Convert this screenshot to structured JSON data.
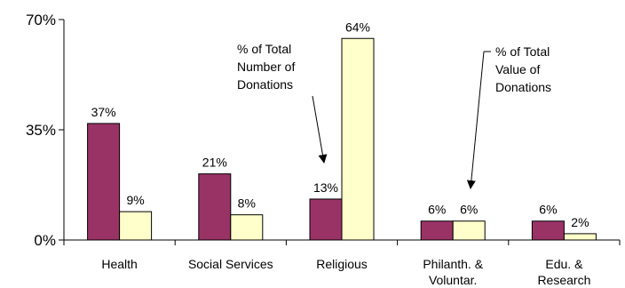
{
  "chart_data": {
    "type": "bar",
    "categories": [
      [
        "Health"
      ],
      [
        "Social Services"
      ],
      [
        "Religious"
      ],
      [
        "Philanth. &",
        "Voluntar."
      ],
      [
        "Edu. &",
        "Research"
      ]
    ],
    "series": [
      {
        "values": [
          37,
          21,
          13,
          6,
          6
        ],
        "labels": [
          "37%",
          "21%",
          "13%",
          "6%",
          "6%"
        ],
        "color": "#993366"
      },
      {
        "values": [
          9,
          8,
          64,
          6,
          2
        ],
        "labels": [
          "9%",
          "8%",
          "64%",
          "6%",
          "2%"
        ],
        "color": "#ffffcc"
      }
    ],
    "ylim": [
      0,
      70
    ],
    "yticks": [
      {
        "value": 0,
        "label": "0%"
      },
      {
        "value": 35,
        "label": "35%"
      },
      {
        "value": 70,
        "label": "70%"
      }
    ],
    "annotations": [
      {
        "lines": [
          "% of Total",
          "Number of",
          "Donations"
        ],
        "points_to": "Religious, series 1"
      },
      {
        "lines": [
          "% of Total",
          "Value of",
          "Donations"
        ],
        "points_to": "Philanth. & Voluntar., series 2"
      }
    ],
    "grid": false,
    "legend": "none"
  }
}
